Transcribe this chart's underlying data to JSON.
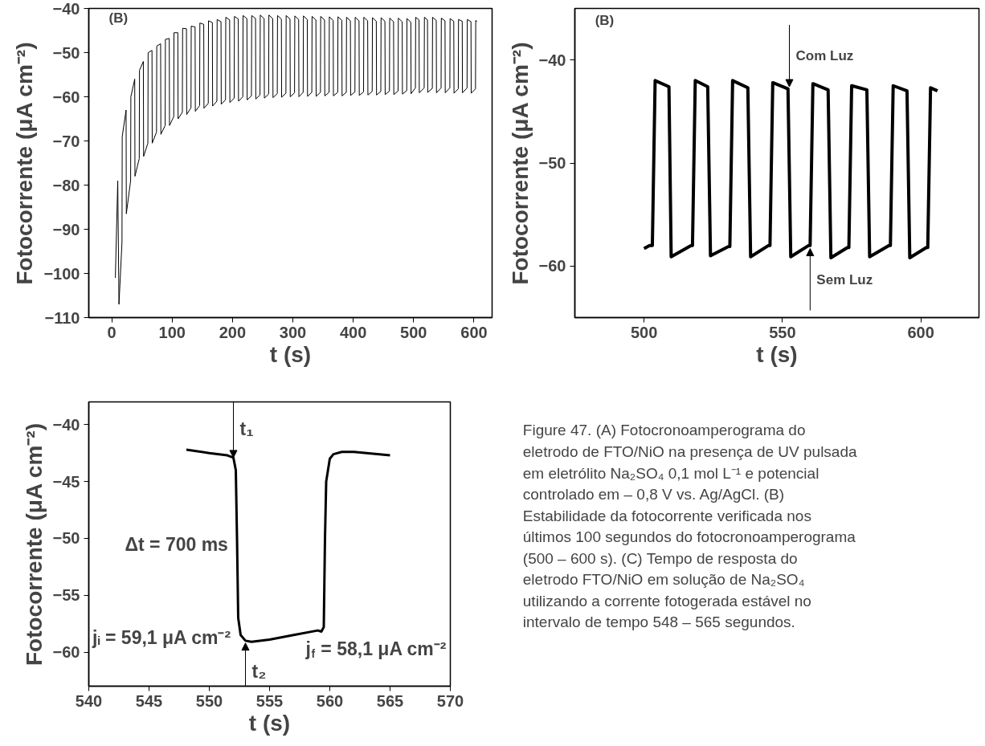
{
  "chart_data": [
    {
      "type": "line",
      "xlabel": "t (s)",
      "ylabel": "Fotocorrente (μA cm⁻²)",
      "xlim": [
        -38,
        630
      ],
      "ylim": [
        -110,
        -40
      ],
      "xticks": [
        0,
        100,
        200,
        300,
        400,
        500,
        600
      ],
      "yticks": [
        -110,
        -100,
        -90,
        -80,
        -70,
        -60,
        -50,
        -40
      ],
      "annotations": [
        "(B)"
      ],
      "series": [
        {
          "color": "#000000",
          "x": [
            6,
            10,
            12,
            17,
            17.4,
            23.8,
            24.2,
            31.3,
            31.7,
            38.1,
            38.5,
            45.6,
            46,
            52.4,
            52.8,
            59.9,
            60.3,
            66.7,
            67.1,
            74.2,
            74.6,
            81,
            81.4,
            88.5,
            88.9,
            95.3,
            95.7,
            102.7,
            103.1,
            109.5,
            109.9,
            117,
            117.4,
            123.8,
            124.2,
            131.3,
            131.7,
            138.1,
            138.5,
            145.6,
            146,
            152.4,
            152.8,
            159.9,
            160.3,
            166.7,
            167.1,
            174.2,
            174.6,
            181,
            181.4,
            188.5,
            188.9,
            195.3,
            195.7,
            202.8,
            203.2,
            209.6,
            210,
            217.1,
            217.5,
            223.9,
            224.3,
            231.4,
            231.8,
            238.2,
            238.6,
            245.6,
            246,
            252.4,
            252.8,
            259.9,
            260.3,
            266.7,
            267.1,
            274.2,
            274.6,
            281,
            281.4,
            288.5,
            288.9,
            295.3,
            295.7,
            302.8,
            303.2,
            309.6,
            310,
            317.1,
            317.5,
            323.9,
            324.3,
            331.4,
            331.8,
            338.2,
            338.6,
            345.7,
            346.1,
            352.5,
            352.9,
            360,
            360.4,
            366.8,
            367.2,
            374.3,
            374.7,
            381.1,
            381.5,
            388.5,
            388.9,
            395.3,
            395.7,
            402.8,
            403.2,
            409.6,
            410,
            417.1,
            417.5,
            423.9,
            424.3,
            431.4,
            431.8,
            438.2,
            438.6,
            445.7,
            446.1,
            452.5,
            452.9,
            460,
            460.4,
            466.8,
            467.2,
            474.3,
            474.7,
            481.1,
            481.5,
            488.6,
            489,
            495.4,
            495.8,
            503,
            503.4,
            509,
            509.4,
            517.5,
            517.9,
            523,
            523.4,
            531,
            531.4,
            537.5,
            537.9,
            545.5,
            545.9,
            552,
            552.4,
            560,
            560.4,
            566.5,
            566.9,
            574,
            574.4,
            580.5,
            580.9,
            588.5,
            588.9,
            595,
            595.4,
            602.5,
            602.9,
            605
          ],
          "values": [
            -101,
            -79,
            -107,
            -93,
            -69,
            -63,
            -86.5,
            -79,
            -60,
            -56,
            -78,
            -74,
            -54,
            -52,
            -73.5,
            -70.5,
            -50,
            -49.5,
            -70.5,
            -68,
            -48.5,
            -48,
            -68.5,
            -66.5,
            -47,
            -46.8,
            -66.5,
            -64.5,
            -45.5,
            -45.5,
            -65,
            -63.5,
            -44.5,
            -44.6,
            -64,
            -62.5,
            -44,
            -44.2,
            -63.3,
            -62,
            -43.3,
            -43.6,
            -62.6,
            -61.5,
            -42.8,
            -43.2,
            -62.1,
            -61,
            -42.5,
            -43,
            -61.7,
            -60.7,
            -42,
            -42.6,
            -61.3,
            -60.3,
            -41.8,
            -42.4,
            -61,
            -60,
            -41.6,
            -42.3,
            -60.7,
            -59.8,
            -41.6,
            -42.3,
            -60.5,
            -59.6,
            -41.5,
            -42.3,
            -60.3,
            -59.4,
            -41.5,
            -42.3,
            -60.2,
            -59.3,
            -41.6,
            -42.4,
            -60.1,
            -59.2,
            -41.6,
            -42.4,
            -60,
            -59.1,
            -41.7,
            -42.5,
            -60,
            -59,
            -41.7,
            -42.5,
            -59.9,
            -59,
            -41.8,
            -42.6,
            -59.9,
            -59,
            -41.8,
            -42.6,
            -59.8,
            -59,
            -41.9,
            -42.7,
            -59.8,
            -59,
            -41.9,
            -42.7,
            -59.8,
            -59,
            -42,
            -42.8,
            -59.7,
            -58.9,
            -42,
            -42.8,
            -59.7,
            -58.9,
            -42,
            -42.8,
            -59.6,
            -58.8,
            -42.1,
            -42.9,
            -59.6,
            -58.8,
            -42.1,
            -42.9,
            -59.5,
            -58.7,
            -42.2,
            -43,
            -59.5,
            -58.7,
            -42.2,
            -43,
            -59.4,
            -58.6,
            -42.3,
            -43.1,
            -59.3,
            -58,
            -42,
            -42.6,
            -59.1,
            -58,
            -42,
            -42.6,
            -59,
            -58.1,
            -42,
            -42.7,
            -59.1,
            -58,
            -42.2,
            -42.8,
            -59.1,
            -58,
            -42.3,
            -42.9,
            -59.2,
            -58.2,
            -42.5,
            -42.9,
            -59.1,
            -58,
            -42.5,
            -43,
            -59.2,
            -58.2,
            -42.7,
            -43
          ]
        }
      ]
    },
    {
      "type": "line",
      "xlabel": "t (s)",
      "ylabel": "Fotocorrente (μA cm⁻²)",
      "xlim": [
        475,
        621
      ],
      "ylim": [
        -65,
        -35
      ],
      "xticks": [
        500,
        550,
        600
      ],
      "yticks": [
        -60,
        -50,
        -40
      ],
      "annotations": [
        "(B)",
        {
          "text": "Com Luz",
          "x": 552.5,
          "y": -42.6
        },
        {
          "text": "Sem Luz",
          "x": 560,
          "y": -58.3
        }
      ],
      "series": [
        {
          "color": "#000000",
          "x": [
            500,
            502,
            503,
            504,
            509,
            509.8,
            517,
            517.5,
            518.5,
            523,
            524,
            530.5,
            531,
            532,
            537.5,
            538.5,
            545,
            545.5,
            546.5,
            552,
            553,
            559.5,
            560,
            561,
            566.5,
            567.5,
            573.5,
            574,
            575,
            580.5,
            581.5,
            588.5,
            589,
            590,
            595,
            596,
            602,
            602.5,
            603.5,
            606
          ],
          "values": [
            -58.3,
            -58,
            -58,
            -42,
            -42.6,
            -59.1,
            -58,
            -58,
            -42,
            -42.6,
            -59,
            -58.1,
            -58.1,
            -42,
            -42.7,
            -59.1,
            -58,
            -58,
            -42.2,
            -42.8,
            -59.1,
            -58,
            -58,
            -42.3,
            -42.9,
            -59.2,
            -58.2,
            -58.2,
            -42.5,
            -42.9,
            -59.1,
            -58,
            -58,
            -42.5,
            -43,
            -59.2,
            -58.2,
            -58.2,
            -42.7,
            -43
          ]
        }
      ]
    },
    {
      "type": "line",
      "xlabel": "t (s)",
      "ylabel": "Fotocorrente (μA cm⁻²)",
      "xlim": [
        540,
        570
      ],
      "ylim": [
        -63,
        -38
      ],
      "xticks": [
        540,
        545,
        550,
        555,
        560,
        565,
        570
      ],
      "yticks": [
        -60,
        -55,
        -50,
        -45,
        -40
      ],
      "annotations": [
        "Δt = 700 ms",
        "jᵢ = 59,1 μA cm⁻²",
        "j$_{f}$ = 58,1 μA cm⁻²",
        {
          "text": "t₁",
          "x": 552,
          "y": -42.9
        },
        {
          "text": "t₂",
          "x": 553,
          "y": -59.2
        }
      ],
      "series": [
        {
          "color": "#000000",
          "x": [
            548.1,
            550,
            551.5,
            552,
            552.2,
            552.3,
            552.4,
            552.6,
            553,
            553.5,
            555,
            557,
            559,
            559.3,
            559.5,
            559.6,
            559.7,
            560,
            560.3,
            561,
            562,
            565
          ],
          "values": [
            -42.2,
            -42.5,
            -42.7,
            -42.9,
            -44,
            -50,
            -57,
            -58.5,
            -59,
            -59.1,
            -58.9,
            -58.5,
            -58.1,
            -58.2,
            -57.8,
            -50,
            -45,
            -43,
            -42.6,
            -42.4,
            -42.4,
            -42.7
          ]
        }
      ]
    },
    {
      "type": "other",
      "annotations": [
        "Figure 47. (A) Fotocronoamperograma do eletrodo de FTO/NiO na presença de UV pulsada em eletrólito Na₂SO₄ 0,1 mol L⁻¹ e potencial controlado em – 0,8 V vs. Ag/AgCl. (B) Estabilidade da fotocorrente verificada nos últimos 100 segundos do fotocronoamperograma (500 – 600 s). (C) Tempo de resposta do eletrodo FTO/NiO em solução de Na₂SO₄ utilizando a corrente fotogerada estável no intervalo de tempo 548 – 565 segundos."
      ]
    }
  ]
}
